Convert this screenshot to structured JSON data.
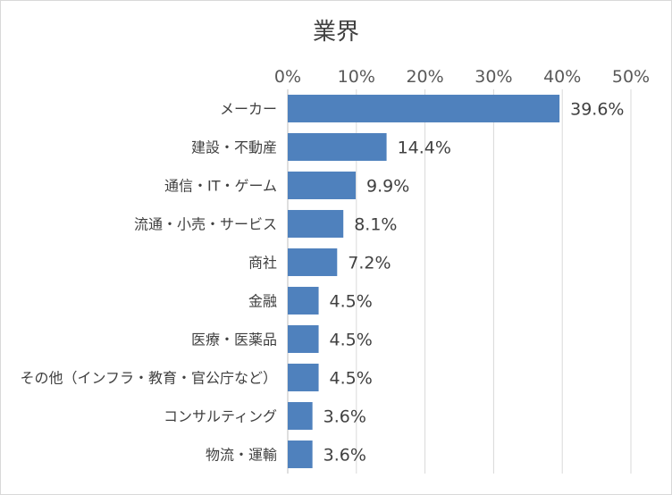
{
  "chart_data": {
    "type": "bar",
    "orientation": "horizontal",
    "title": "業界",
    "xlabel": "",
    "ylabel": "",
    "xlim": [
      0,
      50
    ],
    "tick_values": [
      0,
      10,
      20,
      30,
      40,
      50
    ],
    "tick_labels": [
      "0%",
      "10%",
      "20%",
      "30%",
      "40%",
      "50%"
    ],
    "grid": true,
    "bar_color": "#4F81BD",
    "categories": [
      "メーカー",
      "建設・不動産",
      "通信・IT・ゲーム",
      "流通・小売・サービス",
      "商社",
      "金融",
      "医療・医薬品",
      "その他（インフラ・教育・官公庁など）",
      "コンサルティング",
      "物流・運輸"
    ],
    "values": [
      39.6,
      14.4,
      9.9,
      8.1,
      7.2,
      4.5,
      4.5,
      4.5,
      3.6,
      3.6
    ],
    "data_labels": [
      "39.6%",
      "14.4%",
      "9.9%",
      "8.1%",
      "7.2%",
      "4.5%",
      "4.5%",
      "4.5%",
      "3.6%",
      "3.6%"
    ]
  }
}
